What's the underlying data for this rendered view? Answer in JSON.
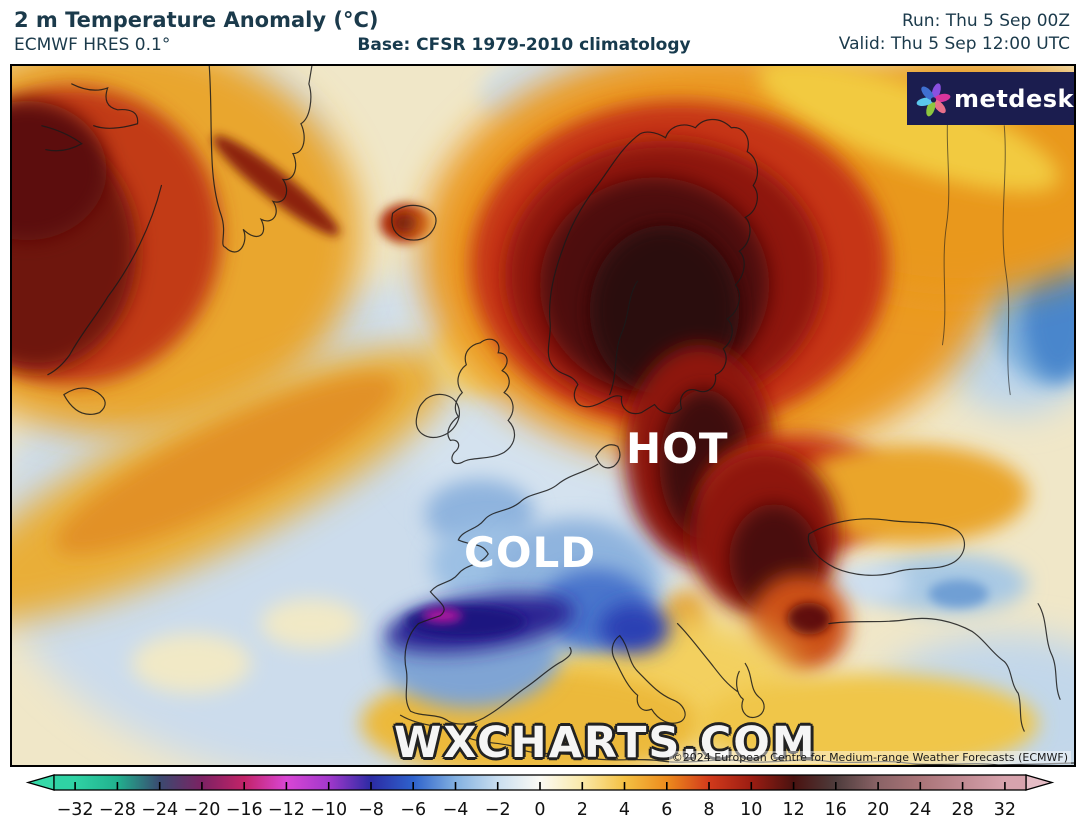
{
  "header": {
    "title": "2 m Temperature Anomaly (°C)",
    "subtitle": "ECMWF HRES 0.1°",
    "base_label": "Base: CFSR 1979-2010 climatology",
    "run_label": "Run: Thu 5 Sep 00Z",
    "valid_label": "Valid: Thu 5 Sep 12:00 UTC",
    "text_color": "#1b3a4b"
  },
  "map": {
    "hot_label": "HOT",
    "cold_label": "COLD",
    "watermark": "WXCHARTS.COM",
    "copyright": "©2024 European Centre for Medium-range Weather Forecasts (ECMWF)",
    "logo_text": "metdesk",
    "logo_bg": "#1b1d4f"
  },
  "chart_data": {
    "type": "heatmap",
    "title": "2 m Temperature Anomaly (°C)",
    "model": "ECMWF HRES 0.1°",
    "baseline": "CFSR 1979-2010 climatology",
    "run": "Thu 5 Sep 00Z",
    "valid": "Thu 5 Sep 12:00 UTC",
    "units": "°C",
    "colorbar": {
      "ticks": [
        -32,
        -28,
        -24,
        -20,
        -16,
        -12,
        -10,
        -8,
        -6,
        -4,
        -2,
        0,
        2,
        4,
        6,
        8,
        10,
        12,
        16,
        20,
        24,
        28,
        32
      ],
      "tick_colors": [
        "#2fd3a4",
        "#21b18e",
        "#3a4a70",
        "#7c2263",
        "#c22368",
        "#d946d4",
        "#a238cc",
        "#2c2ba4",
        "#2e62cc",
        "#82b0e0",
        "#c9def0",
        "#fbfaf4",
        "#fae9a9",
        "#f4c143",
        "#ec8b1d",
        "#d23a1b",
        "#9c1d12",
        "#4a1210",
        "#4e3c3c",
        "#8a6366",
        "#a97478",
        "#c08a92",
        "#d7a3ad"
      ],
      "left_arrow_color": "#36d9a8",
      "right_arrow_color": "#e5bcc5"
    },
    "regions": [
      {
        "area": "Scandinavia / Baltic",
        "anomaly_c": "+8 to +16"
      },
      {
        "area": "Eastern Europe (HOT label)",
        "anomaly_c": "+8 to +14"
      },
      {
        "area": "NE Canada / Labrador",
        "anomaly_c": "+6 to +12"
      },
      {
        "area": "Northern Iberia (COLD area)",
        "anomaly_c": "-8 to -12"
      },
      {
        "area": "France",
        "anomaly_c": "-2 to -8"
      },
      {
        "area": "Central North Atlantic",
        "anomaly_c": "-2 to +2"
      },
      {
        "area": "Western Russia",
        "anomaly_c": "+4 to +8"
      },
      {
        "area": "Urals (right edge)",
        "anomaly_c": "-4 to -8"
      },
      {
        "area": "Balkans",
        "anomaly_c": "+8 to +12"
      },
      {
        "area": "Middle East",
        "anomaly_c": "-2 to -4"
      },
      {
        "area": "North Africa",
        "anomaly_c": "+2 to +6"
      }
    ]
  }
}
